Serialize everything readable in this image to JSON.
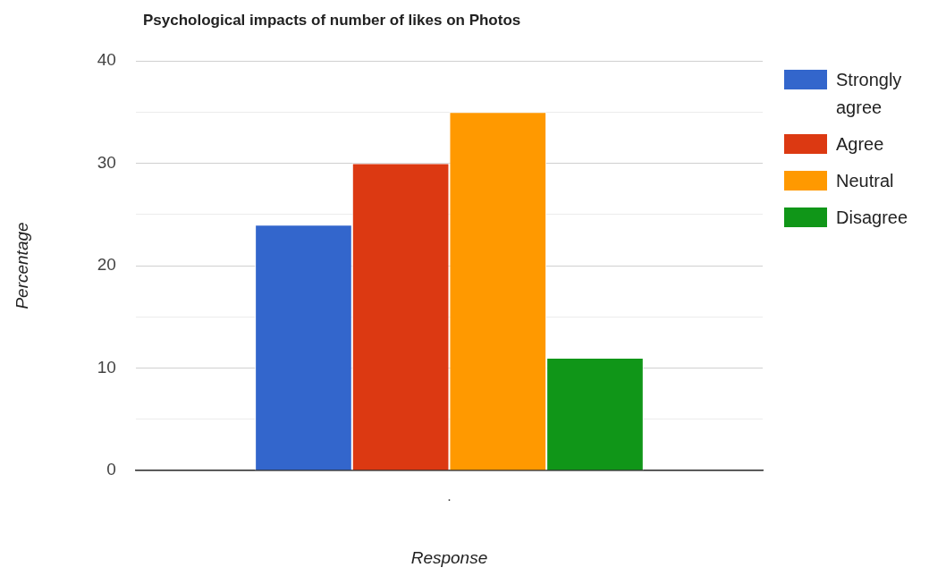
{
  "chart_data": {
    "type": "bar",
    "title": "Psychological impacts of number of likes on Photos",
    "xlabel": "Response",
    "ylabel": "Percentage",
    "categories": [
      "."
    ],
    "series": [
      {
        "name": "Strongly agree",
        "color": "#3366cc",
        "values": [
          24
        ]
      },
      {
        "name": "Agree",
        "color": "#dc3912",
        "values": [
          30
        ]
      },
      {
        "name": "Neutral",
        "color": "#ff9900",
        "values": [
          35
        ]
      },
      {
        "name": "Disagree",
        "color": "#109618",
        "values": [
          11
        ]
      }
    ],
    "ylim": [
      0,
      40
    ],
    "yticks": [
      0,
      {
        "value": 5,
        "label": null
      },
      10,
      {
        "value": 15,
        "label": null
      },
      20,
      {
        "value": 25,
        "label": null
      },
      30,
      {
        "value": 35,
        "label": null
      },
      40
    ],
    "grid": "y",
    "legend": "right"
  }
}
